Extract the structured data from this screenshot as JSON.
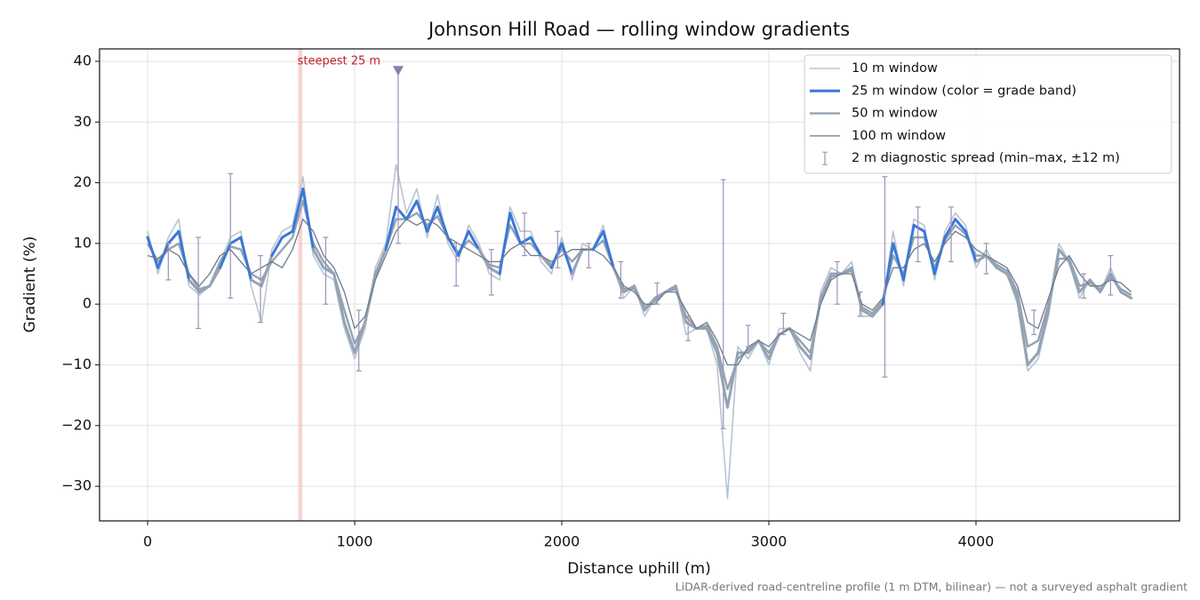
{
  "chart_data": {
    "type": "line",
    "title": "Johnson Hill Road — rolling window gradients",
    "xlabel": "Distance uphill (m)",
    "ylabel": "Gradient (%)",
    "footnote": "LiDAR-derived road-centreline profile (1 m DTM, bilinear) — not a surveyed asphalt gradient",
    "xlim": [
      -232,
      4983
    ],
    "ylim": [
      -35.7,
      42.05
    ],
    "xticks": [
      0,
      1000,
      2000,
      3000,
      4000
    ],
    "yticks": [
      {
        "value": -30,
        "label": "−30"
      },
      {
        "value": -20,
        "label": "−20"
      },
      {
        "value": -10,
        "label": "−10"
      },
      0,
      10,
      20,
      30,
      40
    ],
    "grid": true,
    "legend": "upper right",
    "x": [
      0,
      50,
      100,
      150,
      200,
      250,
      300,
      350,
      400,
      450,
      500,
      550,
      600,
      650,
      700,
      750,
      800,
      850,
      900,
      950,
      1000,
      1050,
      1100,
      1150,
      1200,
      1250,
      1300,
      1350,
      1400,
      1450,
      1500,
      1550,
      1600,
      1650,
      1700,
      1750,
      1800,
      1850,
      1900,
      1950,
      2000,
      2050,
      2100,
      2150,
      2200,
      2250,
      2300,
      2350,
      2400,
      2450,
      2500,
      2550,
      2600,
      2650,
      2700,
      2750,
      2800,
      2850,
      2900,
      2950,
      3000,
      3050,
      3100,
      3150,
      3200,
      3250,
      3300,
      3350,
      3400,
      3450,
      3500,
      3550,
      3600,
      3650,
      3700,
      3750,
      3800,
      3850,
      3900,
      3950,
      4000,
      4050,
      4100,
      4150,
      4200,
      4250,
      4300,
      4350,
      4400,
      4450,
      4500,
      4550,
      4600,
      4650,
      4700,
      4750
    ],
    "series": [
      {
        "name": "10 m window",
        "color": "#b8c4d2",
        "values": [
          12,
          5,
          11,
          14,
          3,
          1.5,
          3,
          7,
          11,
          12,
          3,
          -3,
          9,
          12,
          13,
          21,
          8,
          5,
          4,
          -4,
          -9,
          -4,
          6,
          10,
          23,
          15,
          19,
          11,
          18,
          10,
          7,
          13,
          10,
          5,
          4,
          16,
          12,
          12,
          7,
          5,
          11,
          4,
          10,
          9,
          13,
          6,
          1,
          3,
          -2,
          1,
          2,
          3,
          -5,
          -4,
          -4,
          -10,
          -32,
          -7,
          -9,
          -6,
          -10,
          -4,
          -4,
          -8,
          -11,
          2,
          6,
          5,
          7,
          -2,
          -2,
          0,
          12,
          3,
          14,
          13,
          4,
          12,
          15,
          13,
          6,
          9,
          6,
          5,
          0,
          -11,
          -9,
          -2,
          10,
          7,
          1,
          4,
          2,
          6,
          2,
          1
        ]
      },
      {
        "name": "25 m window (color = grade band)",
        "color": "#3a78d8",
        "values": [
          11,
          6,
          10,
          12,
          4,
          2,
          3,
          6,
          10,
          11,
          4,
          3,
          8,
          11,
          12,
          19,
          9,
          6,
          5,
          -3,
          -8,
          -3,
          5,
          9,
          16,
          14,
          17,
          12,
          16,
          11,
          8,
          12,
          9,
          6,
          5,
          15,
          10,
          11,
          8,
          6,
          10,
          5,
          9,
          9,
          12,
          6,
          2,
          3,
          -1,
          1,
          2,
          3,
          -3,
          -4,
          -4,
          -8,
          -17,
          -8,
          -8,
          -6,
          -9,
          -5,
          -4,
          -7,
          -9,
          1,
          5,
          5,
          6,
          -1,
          -2,
          0,
          10,
          4,
          13,
          12,
          5,
          11,
          14,
          12,
          7,
          8,
          6,
          5,
          1,
          -10,
          -8,
          -1,
          9,
          7,
          2,
          4,
          2,
          5,
          2,
          1
        ]
      },
      {
        "name": "50 m window",
        "color": "#94a3b4",
        "values": [
          10,
          7,
          9,
          10,
          5,
          2.5,
          3,
          7,
          9.5,
          9,
          5,
          4,
          7,
          9,
          11,
          17,
          10,
          7,
          5,
          -1,
          -6.5,
          -3,
          4.5,
          9,
          14,
          14,
          15,
          13,
          14.5,
          11,
          8.5,
          10.5,
          9,
          6.5,
          6,
          13,
          10,
          10,
          8,
          6.5,
          9,
          7,
          9,
          9,
          10.5,
          6,
          2.5,
          2.5,
          -0.5,
          0.5,
          2,
          2.5,
          -2,
          -4,
          -3.5,
          -7,
          -14,
          -9,
          -7.5,
          -6,
          -8,
          -5,
          -4,
          -6,
          -8,
          0.5,
          4.5,
          5,
          5.5,
          -0.5,
          -1.5,
          0.5,
          8,
          5,
          11,
          11,
          6,
          10.5,
          13,
          11.5,
          8,
          8,
          6.5,
          5.5,
          2,
          -7,
          -6,
          0,
          7.5,
          7.5,
          3,
          3.5,
          2.5,
          4.5,
          2.5,
          1.5
        ]
      },
      {
        "name": "100 m window",
        "color": "#6e7a88",
        "values": [
          8,
          7.5,
          9,
          8,
          5,
          3,
          5,
          8,
          9,
          7,
          5,
          6,
          7,
          6,
          9,
          14,
          12,
          8,
          6,
          2,
          -4,
          -2,
          4,
          8,
          12,
          14,
          13,
          14,
          13,
          11,
          10,
          9,
          8,
          7,
          7,
          9,
          10,
          8,
          8,
          7,
          8,
          9,
          9,
          9,
          8,
          6,
          3,
          2,
          0,
          0,
          2,
          2,
          -1,
          -4,
          -3,
          -6,
          -10,
          -10,
          -7,
          -6,
          -7,
          -5,
          -4,
          -5,
          -6,
          0,
          4,
          5,
          5,
          0,
          -1,
          1,
          6,
          6,
          9,
          10,
          7,
          10,
          12,
          11,
          9,
          8,
          7,
          6,
          3,
          -3,
          -4,
          1,
          6,
          8,
          5,
          3,
          3,
          4,
          3.5,
          2
        ]
      }
    ],
    "grade_band": {
      "threshold": 10,
      "below_color": "#94a3b4"
    },
    "spread": {
      "name": "2 m diagnostic spread (min–max, ±12 m)",
      "color": "#9b93b8",
      "x": [
        100,
        245,
        400,
        545,
        860,
        1020,
        1210,
        1490,
        1660,
        1820,
        1980,
        2130,
        2285,
        2460,
        2610,
        2780,
        2900,
        3070,
        3330,
        3440,
        3560,
        3720,
        3880,
        4050,
        4280,
        4520,
        4650
      ],
      "low": [
        4,
        -4,
        1,
        -3,
        0,
        -11,
        10,
        3,
        1.5,
        8,
        6,
        6,
        1,
        0,
        -6,
        -20.5,
        -7,
        -5,
        0,
        -2,
        -12,
        7,
        7,
        5,
        -5,
        1,
        1.5
      ],
      "high": [
        10,
        11,
        21.5,
        8,
        11,
        -1,
        38.5,
        10,
        9,
        15,
        12,
        10,
        7,
        3.5,
        -2,
        20.5,
        -3.5,
        -1.5,
        7,
        2,
        21,
        16,
        16,
        10,
        -1,
        5,
        8
      ]
    },
    "peak": {
      "x": 1210,
      "y": 38.5,
      "color": "#8a7fa8"
    },
    "highlight_x": [
      728,
      747
    ],
    "highlight_color": "#f6c6ca",
    "annotation": {
      "text": "steepest 25 m",
      "x": 745,
      "y": 40,
      "color": "#c0202a"
    }
  }
}
